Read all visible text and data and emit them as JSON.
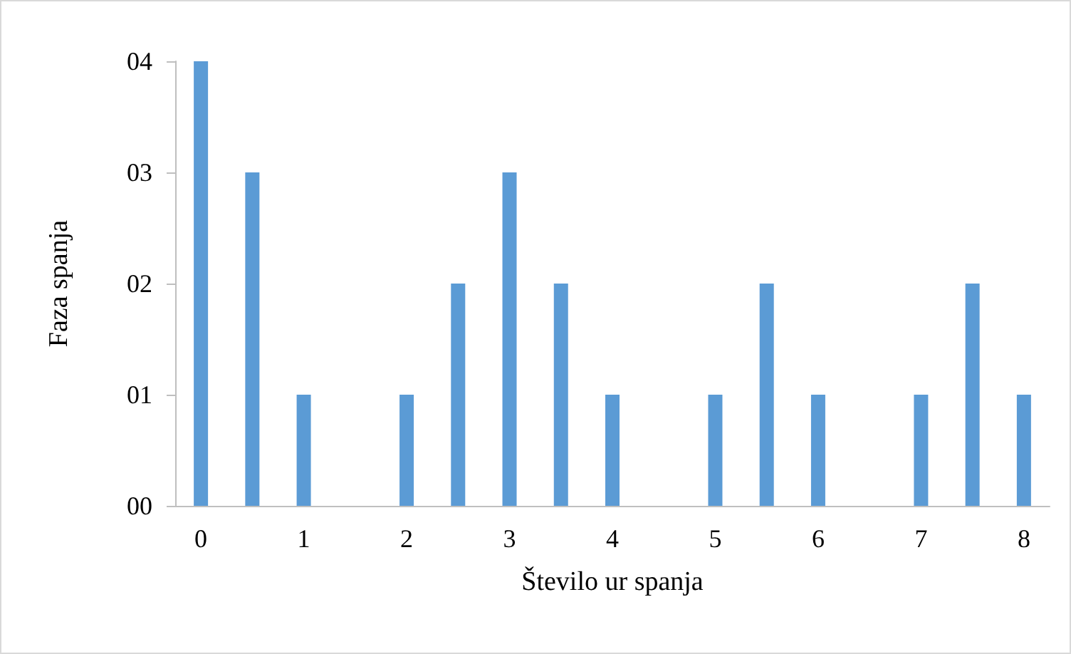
{
  "chart_data": {
    "type": "bar",
    "xlabel": "Število ur spanja",
    "ylabel": "Faza spanja",
    "categories": [
      "0",
      null,
      "1",
      null,
      "2",
      null,
      "3",
      null,
      "4",
      null,
      "5",
      null,
      "6",
      null,
      "7",
      null,
      "8"
    ],
    "values": [
      4,
      3,
      1,
      0,
      1,
      2,
      3,
      2,
      1,
      0,
      1,
      2,
      1,
      0,
      1,
      2,
      1
    ],
    "color": "#5b9bd5",
    "ylim": [
      0,
      4
    ],
    "yticks": [
      {
        "value": 0,
        "label": "00"
      },
      {
        "value": 1,
        "label": "01"
      },
      {
        "value": 2,
        "label": "02"
      },
      {
        "value": 3,
        "label": "03"
      },
      {
        "value": 4,
        "label": "04"
      }
    ],
    "grid": false
  }
}
